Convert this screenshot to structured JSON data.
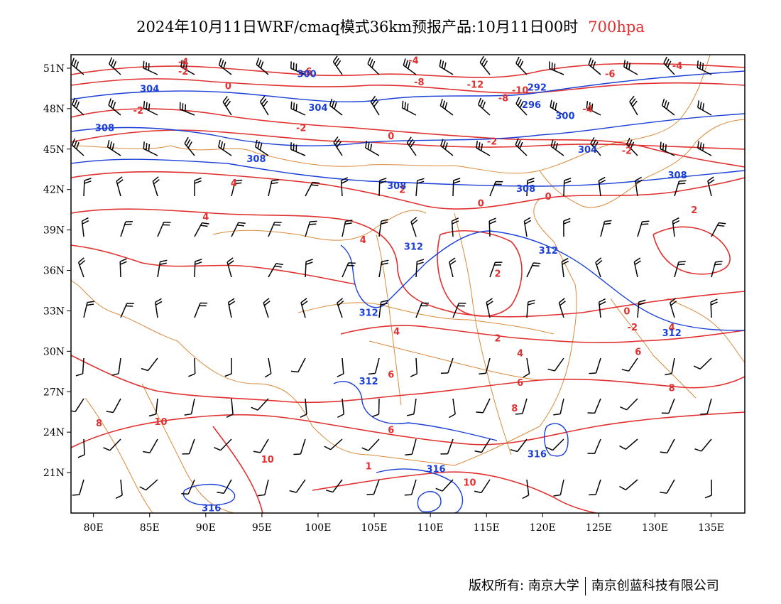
{
  "title": {
    "text": "2024年10月11日WRF/cmaq模式36km预报产品:10月11日00时",
    "level": "700hpa"
  },
  "map": {
    "lon_range": [
      78,
      138
    ],
    "lat_range": [
      18,
      52
    ],
    "lon_ticks": [
      "80E",
      "85E",
      "90E",
      "95E",
      "100E",
      "105E",
      "110E",
      "115E",
      "120E",
      "125E",
      "130E",
      "135E"
    ],
    "lon_tick_values": [
      80,
      85,
      90,
      95,
      100,
      105,
      110,
      115,
      120,
      125,
      130,
      135
    ],
    "lat_ticks": [
      "21N",
      "24N",
      "27N",
      "30N",
      "33N",
      "36N",
      "39N",
      "42N",
      "45N",
      "48N",
      "51N"
    ],
    "lat_tick_values": [
      21,
      24,
      27,
      30,
      33,
      36,
      39,
      42,
      45,
      48,
      51
    ],
    "colors": {
      "temperature": "#e0302f",
      "height": "#1b3fd6",
      "border": "#d98a3a",
      "wind": "#000000"
    },
    "temperature_labels": [
      {
        "text": "-4",
        "lon": 88,
        "lat": 51.5
      },
      {
        "text": "-2",
        "lon": 88,
        "lat": 50.8
      },
      {
        "text": "-4",
        "lon": 108.5,
        "lat": 51.6
      },
      {
        "text": "-4",
        "lon": 132,
        "lat": 51.2
      },
      {
        "text": "-6",
        "lon": 99,
        "lat": 50.8
      },
      {
        "text": "-8",
        "lon": 109,
        "lat": 50
      },
      {
        "text": "-12",
        "lon": 114,
        "lat": 49.8
      },
      {
        "text": "-10",
        "lon": 118,
        "lat": 49.4
      },
      {
        "text": "-8",
        "lon": 116.5,
        "lat": 48.8
      },
      {
        "text": "-6",
        "lon": 126,
        "lat": 50.6
      },
      {
        "text": "-4",
        "lon": 124,
        "lat": 48
      },
      {
        "text": "0",
        "lon": 92,
        "lat": 49.7
      },
      {
        "text": "-2",
        "lon": 84,
        "lat": 47.9
      },
      {
        "text": "-2",
        "lon": 98.5,
        "lat": 46.6
      },
      {
        "text": "0",
        "lon": 106.5,
        "lat": 46
      },
      {
        "text": "-2",
        "lon": 115.5,
        "lat": 45.6
      },
      {
        "text": "-2",
        "lon": 127.5,
        "lat": 44.9
      },
      {
        "text": "4",
        "lon": 92.5,
        "lat": 42.5
      },
      {
        "text": "2",
        "lon": 107.5,
        "lat": 42
      },
      {
        "text": "0",
        "lon": 114.5,
        "lat": 41
      },
      {
        "text": "0",
        "lon": 120.5,
        "lat": 41.5
      },
      {
        "text": "2",
        "lon": 133.5,
        "lat": 40.5
      },
      {
        "text": "4",
        "lon": 90,
        "lat": 40
      },
      {
        "text": "4",
        "lon": 104,
        "lat": 38.3
      },
      {
        "text": "2",
        "lon": 116,
        "lat": 35.8
      },
      {
        "text": "0",
        "lon": 127.5,
        "lat": 33
      },
      {
        "text": "-2",
        "lon": 128,
        "lat": 31.8
      },
      {
        "text": "4",
        "lon": 131.5,
        "lat": 31.8
      },
      {
        "text": "4",
        "lon": 107,
        "lat": 31.5
      },
      {
        "text": "2",
        "lon": 116,
        "lat": 31
      },
      {
        "text": "4",
        "lon": 118,
        "lat": 29.9
      },
      {
        "text": "6",
        "lon": 128.5,
        "lat": 30
      },
      {
        "text": "6",
        "lon": 106.5,
        "lat": 28.3
      },
      {
        "text": "6",
        "lon": 118,
        "lat": 27.7
      },
      {
        "text": "8",
        "lon": 131.5,
        "lat": 27.3
      },
      {
        "text": "8",
        "lon": 117.5,
        "lat": 25.8
      },
      {
        "text": "8",
        "lon": 80.5,
        "lat": 24.7
      },
      {
        "text": "10",
        "lon": 86,
        "lat": 24.8
      },
      {
        "text": "6",
        "lon": 106.5,
        "lat": 24.2
      },
      {
        "text": "10",
        "lon": 95.5,
        "lat": 22
      },
      {
        "text": "1",
        "lon": 104.5,
        "lat": 21.5
      },
      {
        "text": "10",
        "lon": 113.5,
        "lat": 20.3
      }
    ],
    "height_labels": [
      {
        "text": "300",
        "lon": 99,
        "lat": 50.6
      },
      {
        "text": "292",
        "lon": 119.5,
        "lat": 49.6
      },
      {
        "text": "304",
        "lon": 85,
        "lat": 49.5
      },
      {
        "text": "304",
        "lon": 100,
        "lat": 48.1
      },
      {
        "text": "296",
        "lon": 119,
        "lat": 48.3
      },
      {
        "text": "300",
        "lon": 122,
        "lat": 47.5
      },
      {
        "text": "308",
        "lon": 81,
        "lat": 46.6
      },
      {
        "text": "304",
        "lon": 124,
        "lat": 45
      },
      {
        "text": "308",
        "lon": 94.5,
        "lat": 44.3
      },
      {
        "text": "308",
        "lon": 132,
        "lat": 43.1
      },
      {
        "text": "308",
        "lon": 107,
        "lat": 42.3
      },
      {
        "text": "308",
        "lon": 118.5,
        "lat": 42.1
      },
      {
        "text": "312",
        "lon": 108.5,
        "lat": 37.8
      },
      {
        "text": "312",
        "lon": 120.5,
        "lat": 37.5
      },
      {
        "text": "312",
        "lon": 104.5,
        "lat": 32.9
      },
      {
        "text": "312",
        "lon": 131.5,
        "lat": 31.4
      },
      {
        "text": "312",
        "lon": 104.5,
        "lat": 27.8
      },
      {
        "text": "316",
        "lon": 110.5,
        "lat": 21.3
      },
      {
        "text": "316",
        "lon": 119.5,
        "lat": 22.4
      },
      {
        "text": "316",
        "lon": 90.5,
        "lat": 18.4
      }
    ]
  },
  "footer": {
    "copyright": "版权所有: 南京大学",
    "company": "南京创蓝科技有限公司"
  }
}
